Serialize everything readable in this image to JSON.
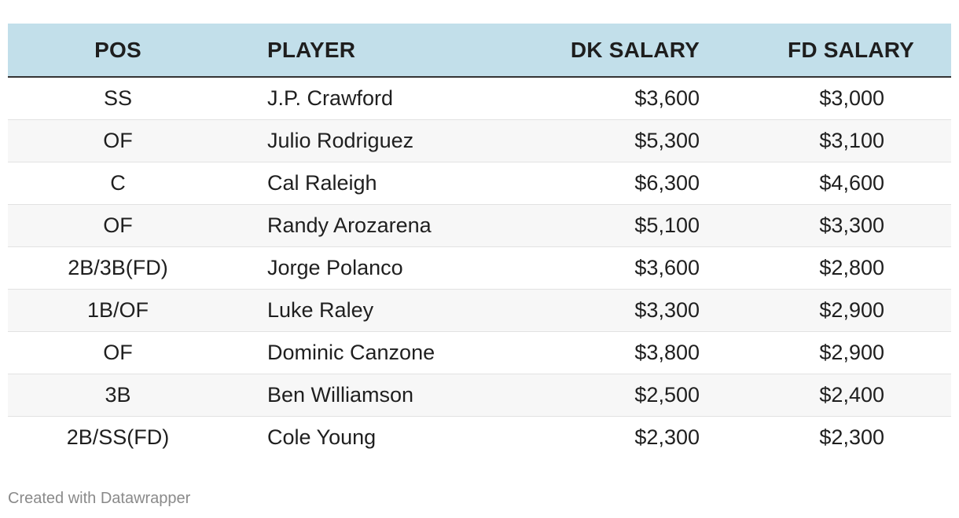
{
  "chart_data": {
    "type": "table",
    "columns": [
      "POS",
      "PLAYER",
      "DK SALARY",
      "FD SALARY"
    ],
    "rows": [
      [
        "SS",
        "J.P. Crawford",
        "$3,600",
        "$3,000"
      ],
      [
        "OF",
        "Julio Rodriguez",
        "$5,300",
        "$3,100"
      ],
      [
        "C",
        "Cal Raleigh",
        "$6,300",
        "$4,600"
      ],
      [
        "OF",
        "Randy Arozarena",
        "$5,100",
        "$3,300"
      ],
      [
        "2B/3B(FD)",
        "Jorge Polanco",
        "$3,600",
        "$2,800"
      ],
      [
        "1B/OF",
        "Luke Raley",
        "$3,300",
        "$2,900"
      ],
      [
        "OF",
        "Dominic Canzone",
        "$3,800",
        "$2,900"
      ],
      [
        "3B",
        "Ben Williamson",
        "$2,500",
        "$2,400"
      ],
      [
        "2B/SS(FD)",
        "Cole Young",
        "$2,300",
        "$2,300"
      ]
    ]
  },
  "footer": {
    "credit": "Created with Datawrapper"
  },
  "colors": {
    "header_background": "#c2dfea",
    "stripe_background": "#f7f7f7",
    "text": "#1f1f1f",
    "credit_text": "#8a8a8a"
  }
}
